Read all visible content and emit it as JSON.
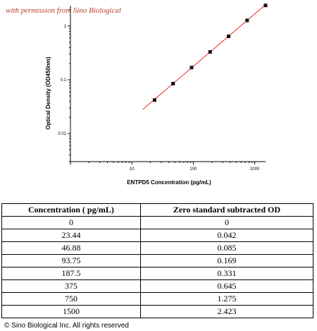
{
  "watermark": "with permission from Sino Biological",
  "chart_data": {
    "type": "scatter",
    "xlabel": "ENTPD5 Concentration (pg/mL)",
    "ylabel": "Optical Density (OD450nm)",
    "x_scale": "log",
    "y_scale": "log",
    "xlim": [
      1,
      1500
    ],
    "ylim": [
      0.003,
      2.4
    ],
    "x_ticks": [
      10,
      100,
      1000
    ],
    "x_tick_labels": [
      "10",
      "100",
      "1000"
    ],
    "y_ticks": [
      0.01,
      0.1,
      1
    ],
    "y_tick_labels": [
      "0.01",
      "0.1",
      "1"
    ],
    "series": [
      {
        "x": [
          23.44,
          46.88,
          93.75,
          187.5,
          375,
          750,
          1500
        ],
        "y": [
          0.042,
          0.085,
          0.169,
          0.331,
          0.645,
          1.275,
          2.423
        ]
      }
    ],
    "fit_line": {
      "x": [
        15,
        1500
      ],
      "y": [
        0.028,
        2.5
      ],
      "color": "#e8261f"
    },
    "grid": false
  },
  "table": {
    "headers": [
      "Concentration ( pg/mL)",
      "Zero standard subtracted OD"
    ],
    "rows": [
      [
        "0",
        "0"
      ],
      [
        "23.44",
        "0.042"
      ],
      [
        "46.88",
        "0.085"
      ],
      [
        "93.75",
        "0.169"
      ],
      [
        "187.5",
        "0.331"
      ],
      [
        "375",
        "0.645"
      ],
      [
        "750",
        "1.275"
      ],
      [
        "1500",
        "2.423"
      ]
    ]
  },
  "copyright": "© Sino Biological Inc. All rights reserved"
}
